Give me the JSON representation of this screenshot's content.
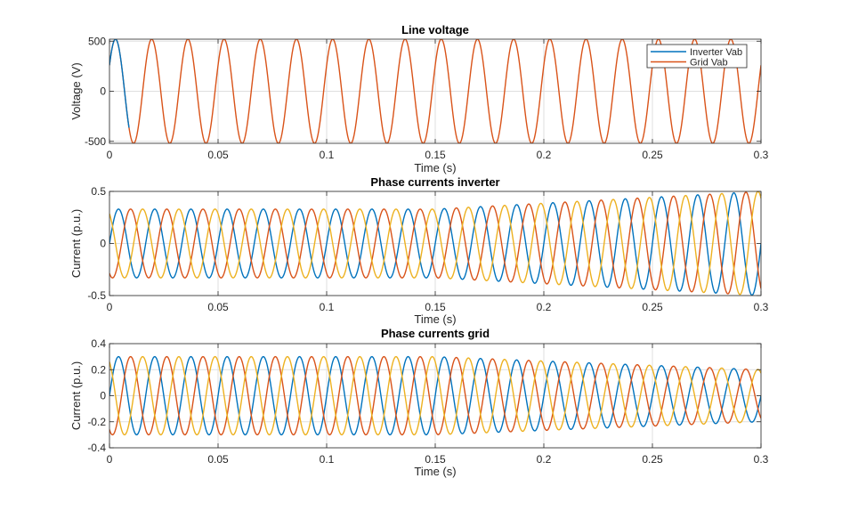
{
  "chart_data": [
    {
      "type": "line",
      "title": "Line voltage",
      "xlabel": "Time (s)",
      "ylabel": "Voltage (V)",
      "xlim": [
        0,
        0.3
      ],
      "ylim": [
        -520,
        520
      ],
      "xticks": [
        0,
        0.05,
        0.1,
        0.15,
        0.2,
        0.25,
        0.3
      ],
      "xtick_labels": [
        "0",
        "0.05",
        "0.1",
        "0.15",
        "0.2",
        "0.25",
        "0.3"
      ],
      "yticks": [
        500,
        0,
        -500
      ],
      "ytick_labels": [
        "500",
        "0",
        "-500"
      ],
      "grid": true,
      "legend": {
        "location": "top-right",
        "entries": [
          "Inverter Vab",
          "Grid Vab"
        ]
      },
      "frequency_hz": 60,
      "series": [
        {
          "name": "Inverter Vab",
          "color": "#0072BD",
          "amplitude": 520,
          "phase_deg": 30,
          "note_visible_only_start": true
        },
        {
          "name": "Grid Vab",
          "color": "#D95319",
          "amplitude": 520,
          "phase_deg": 30
        }
      ]
    },
    {
      "type": "line",
      "title": "Phase currents inverter",
      "xlabel": "Time (s)",
      "ylabel": "Current (p.u.)",
      "xlim": [
        0,
        0.3
      ],
      "ylim": [
        -0.5,
        0.5
      ],
      "xticks": [
        0,
        0.05,
        0.1,
        0.15,
        0.2,
        0.25,
        0.3
      ],
      "xtick_labels": [
        "0",
        "0.05",
        "0.1",
        "0.15",
        "0.2",
        "0.25",
        "0.3"
      ],
      "yticks": [
        0.5,
        0,
        -0.5
      ],
      "ytick_labels": [
        "0.5",
        "0",
        "-0.5"
      ],
      "grid": true,
      "frequency_hz": 60,
      "amplitude_envelope": {
        "t": [
          0,
          0.15,
          0.3
        ],
        "amp": [
          0.33,
          0.33,
          0.5
        ]
      },
      "series": [
        {
          "color": "#0072BD",
          "phase_deg": 0
        },
        {
          "color": "#D95319",
          "phase_deg": -120
        },
        {
          "color": "#EDB120",
          "phase_deg": 120
        }
      ]
    },
    {
      "type": "line",
      "title": "Phase currents grid",
      "xlabel": "Time (s)",
      "ylabel": "Current (p.u.)",
      "xlim": [
        0,
        0.3
      ],
      "ylim": [
        -0.4,
        0.4
      ],
      "xticks": [
        0,
        0.05,
        0.1,
        0.15,
        0.2,
        0.25,
        0.3
      ],
      "xtick_labels": [
        "0",
        "0.05",
        "0.1",
        "0.15",
        "0.2",
        "0.25",
        "0.3"
      ],
      "yticks": [
        0.4,
        0.2,
        0,
        -0.2,
        -0.4
      ],
      "ytick_labels": [
        "0.4",
        "0.2",
        "0",
        "-0.2",
        "-0.4"
      ],
      "grid": true,
      "frequency_hz": 60,
      "amplitude_envelope": {
        "t": [
          0,
          0.15,
          0.3
        ],
        "amp": [
          0.3,
          0.3,
          0.2
        ]
      },
      "series": [
        {
          "color": "#0072BD",
          "phase_deg": 0
        },
        {
          "color": "#D95319",
          "phase_deg": -120
        },
        {
          "color": "#EDB120",
          "phase_deg": 120
        }
      ]
    }
  ]
}
